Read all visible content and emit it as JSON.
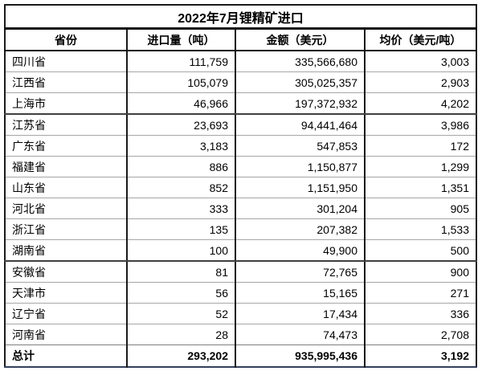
{
  "title": "2022年7月锂精矿进口",
  "columns": {
    "province": "省份",
    "volume": "进口量（吨）",
    "amount": "金额（美元）",
    "avg_price": "均价（美元/吨）"
  },
  "rows": [
    {
      "province": "四川省",
      "volume": "111,759",
      "amount": "335,566,680",
      "avg_price": "3,003"
    },
    {
      "province": "江西省",
      "volume": "105,079",
      "amount": "305,025,357",
      "avg_price": "2,903"
    },
    {
      "province": "上海市",
      "volume": "46,966",
      "amount": "197,372,932",
      "avg_price": "4,202"
    },
    {
      "province": "江苏省",
      "volume": "23,693",
      "amount": "94,441,464",
      "avg_price": "3,986"
    },
    {
      "province": "广东省",
      "volume": "3,183",
      "amount": "547,853",
      "avg_price": "172"
    },
    {
      "province": "福建省",
      "volume": "886",
      "amount": "1,150,877",
      "avg_price": "1,299"
    },
    {
      "province": "山东省",
      "volume": "852",
      "amount": "1,151,950",
      "avg_price": "1,351"
    },
    {
      "province": "河北省",
      "volume": "333",
      "amount": "301,204",
      "avg_price": "905"
    },
    {
      "province": "浙江省",
      "volume": "135",
      "amount": "207,382",
      "avg_price": "1,533"
    },
    {
      "province": "湖南省",
      "volume": "100",
      "amount": "49,900",
      "avg_price": "500"
    },
    {
      "province": "安徽省",
      "volume": "81",
      "amount": "72,765",
      "avg_price": "900"
    },
    {
      "province": "天津市",
      "volume": "56",
      "amount": "15,165",
      "avg_price": "271"
    },
    {
      "province": "辽宁省",
      "volume": "52",
      "amount": "17,434",
      "avg_price": "336"
    },
    {
      "province": "河南省",
      "volume": "28",
      "amount": "74,473",
      "avg_price": "2,708"
    }
  ],
  "total": {
    "label": "总计",
    "volume": "293,202",
    "amount": "935,995,436",
    "avg_price": "3,192"
  },
  "colors": {
    "text": "#000000",
    "outer_border": "#1a1a1a",
    "grid_line": "#a6a6a6",
    "section_line": "#3f3f3f",
    "bottom_border": "#32405a",
    "background": "#ffffff"
  }
}
